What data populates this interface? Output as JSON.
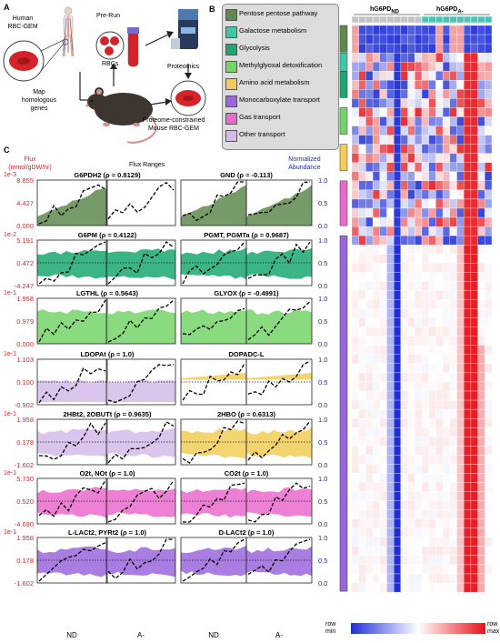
{
  "panel_a": {
    "label": "A",
    "human_gem": "Human\nRBC-GEM",
    "pre_run": "Pre-Run",
    "rbcs": "RBCs",
    "proteomics": "Proteomics",
    "map_genes": "Map\nhomologous\ngenes",
    "mouse_gem": "Proteome-constrained\nMouse RBC-GEM"
  },
  "panel_b": {
    "label": "B",
    "legend": [
      {
        "label": "Pentose pentose pathway",
        "color": "#5f8a4e"
      },
      {
        "label": "Galactose metabolism",
        "color": "#3dc8a8"
      },
      {
        "label": "Glycolysis",
        "color": "#1aa871"
      },
      {
        "label": "Methylglyoxal detoxification",
        "color": "#76d36a"
      },
      {
        "label": "Amino acid metabolism",
        "color": "#f2cc55"
      },
      {
        "label": "Monocarboxylate transport",
        "color": "#9a66dc"
      },
      {
        "label": "Gas transport",
        "color": "#ea6acd"
      },
      {
        "label": "Other transport",
        "color": "#d4bce9"
      }
    ],
    "group_nd": "hG6PD",
    "group_nd_sub": "ND",
    "group_a": "hG6PD",
    "group_a_sub": "A-",
    "row_label": "row",
    "min_label": "min",
    "max_label": "max"
  },
  "panel_c": {
    "label": "C",
    "flux_title": "Flux\n(mmol/gDW/hr)",
    "flux_ranges": "Flux Ranges",
    "norm_title": "Normalized\nAbundance",
    "x_labels": [
      "ND",
      "A-",
      "ND",
      "A-"
    ],
    "right_ticks": [
      "1.0",
      "0.5",
      "0.0"
    ],
    "rows": [
      {
        "exp": "1e-3",
        "ticks": [
          "8.855",
          "4.427",
          "0.000"
        ],
        "left_title": "G6PDH2 (ρ = 0.8129)",
        "right_title": "GND (ρ = -0.113)",
        "left_color": "#5f8a4e",
        "right_color": "#5f8a4e"
      },
      {
        "exp": "1e-2",
        "ticks": [
          "5.191",
          "0.472",
          "-4.247"
        ],
        "left_title": "G6PM (ρ = 0.4122)",
        "right_title": "PGMT, PGMTa (ρ = 0.9687)",
        "left_color": "#1aa871",
        "right_color": "#1aa871"
      },
      {
        "exp": "1e-1",
        "ticks": [
          "1.958",
          "0.979",
          "0.000"
        ],
        "left_title": "LGTHL (ρ = 0.5643)",
        "right_title": "GLYOX (ρ = -0.4991)",
        "left_color": "#76d36a",
        "right_color": "#76d36a"
      },
      {
        "exp": "1e-1",
        "ticks": [
          "1.103",
          "0.100",
          "-0.902"
        ],
        "left_title": "LDOPAt (ρ = 1.0)",
        "right_title": "DOPADC-L",
        "left_color": "#d4bce9",
        "right_color": "#f2cc55"
      },
      {
        "exp": "1e-1",
        "ticks": [
          "1.958",
          "0.178",
          "-1.602"
        ],
        "left_title": "2HBt2, 2OBUTt (ρ = 0.9635)",
        "right_title": "2HBO (ρ = 0.6313)",
        "left_color": "#d4bce9",
        "right_color": "#f2cc55"
      },
      {
        "exp": "1e-1",
        "ticks": [
          "5.730",
          "0.520",
          "-4.690"
        ],
        "left_title": "O2t, NOt (ρ = 1.0)",
        "right_title": "CO2t (ρ = 1.0)",
        "left_color": "#ea6acd",
        "right_color": "#ea6acd"
      },
      {
        "exp": "1e-1",
        "ticks": [
          "1.958",
          "0.178",
          "-1.602"
        ],
        "left_title": "L-LACt2, PYRt2 (ρ = 1.0)",
        "right_title": "D-LACt2 (ρ = 1.0)",
        "left_color": "#9a66dc",
        "right_color": "#9a66dc"
      }
    ]
  },
  "colors": {
    "low": "#1f2fd8",
    "high": "#e8121a",
    "mid": "#ffffff"
  }
}
